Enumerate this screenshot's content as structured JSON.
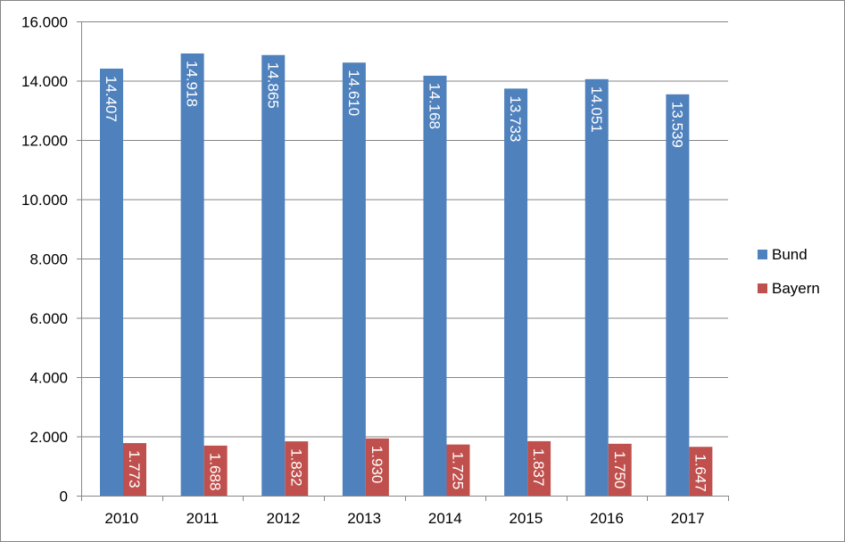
{
  "chart_data": {
    "type": "bar",
    "categories": [
      "2010",
      "2011",
      "2012",
      "2013",
      "2014",
      "2015",
      "2016",
      "2017"
    ],
    "series": [
      {
        "name": "Bund",
        "color": "#4f81bd",
        "values": [
          14407,
          14918,
          14865,
          14610,
          14168,
          13733,
          14051,
          13539
        ],
        "labels": [
          "14.407",
          "14.918",
          "14.865",
          "14.610",
          "14.168",
          "13.733",
          "14.051",
          "13.539"
        ]
      },
      {
        "name": "Bayern",
        "color": "#c0504d",
        "values": [
          1773,
          1688,
          1832,
          1930,
          1725,
          1837,
          1750,
          1647
        ],
        "labels": [
          "1.773",
          "1.688",
          "1.832",
          "1.930",
          "1.725",
          "1.837",
          "1.750",
          "1.647"
        ]
      }
    ],
    "ylim": [
      0,
      16000
    ],
    "yticks": [
      0,
      2000,
      4000,
      6000,
      8000,
      10000,
      12000,
      14000,
      16000
    ],
    "ytick_labels": [
      "0",
      "2.000",
      "4.000",
      "6.000",
      "8.000",
      "10.000",
      "12.000",
      "14.000",
      "16.000"
    ],
    "grid": true,
    "legend_position": "right",
    "title": "",
    "xlabel": "",
    "ylabel": ""
  }
}
